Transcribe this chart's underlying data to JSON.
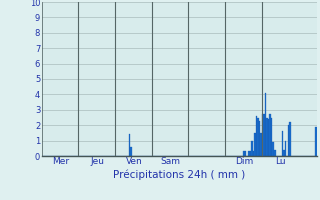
{
  "title": "Précipitations 24h ( mm )",
  "background_color": "#dff0f0",
  "plot_bg_color": "#d8ecec",
  "bar_color": "#1a6ecc",
  "bar_edge_color": "#1050aa",
  "ylim": [
    0,
    10
  ],
  "yticks": [
    0,
    1,
    2,
    3,
    4,
    5,
    6,
    7,
    8,
    9,
    10
  ],
  "grid_color": "#aabcbc",
  "day_line_color": "#556666",
  "day_labels": [
    "Mer",
    "Jeu",
    "Ven",
    "Sam",
    "Dim",
    "Lu"
  ],
  "n_bars": 168,
  "values": [
    0,
    0,
    0,
    0,
    0,
    0,
    0,
    0,
    0,
    0,
    0,
    0,
    0,
    0,
    0,
    0,
    0,
    0,
    0,
    0,
    0,
    0,
    0,
    0,
    0,
    0,
    0,
    0,
    0,
    0,
    0,
    0,
    0,
    0,
    0,
    0,
    0,
    0,
    0,
    0,
    0,
    0,
    0,
    0,
    0,
    0,
    0,
    0,
    0,
    0,
    0,
    0,
    0,
    0,
    0,
    0,
    0,
    1.4,
    0.6,
    0,
    0,
    0,
    0,
    0,
    0,
    0,
    0,
    0,
    0,
    0,
    0,
    0,
    0,
    0,
    0,
    0,
    0,
    0,
    0,
    0,
    0,
    0,
    0,
    0,
    0,
    0,
    0,
    0,
    0,
    0,
    0,
    0,
    0,
    0,
    0,
    0,
    0,
    0,
    0,
    0,
    0,
    0,
    0,
    0,
    0,
    0,
    0,
    0,
    0,
    0,
    0,
    0,
    0,
    0,
    0,
    0,
    0,
    0,
    0,
    0,
    0,
    0,
    0,
    0,
    0,
    0,
    0,
    0,
    0,
    0,
    0,
    0,
    0.3,
    0.3,
    0,
    0.3,
    0.3,
    1.0,
    0.3,
    1.5,
    2.6,
    2.5,
    2.3,
    1.5,
    2.7,
    2.7,
    4.1,
    2.5,
    2.4,
    2.7,
    2.5,
    0.9,
    0.4,
    0,
    0,
    0,
    0,
    1.6,
    0.4,
    1.0,
    0,
    2.0,
    2.2,
    0,
    0,
    0,
    0,
    0,
    0,
    0,
    0,
    0,
    0,
    0,
    0,
    0,
    0,
    0,
    0,
    1.9
  ]
}
